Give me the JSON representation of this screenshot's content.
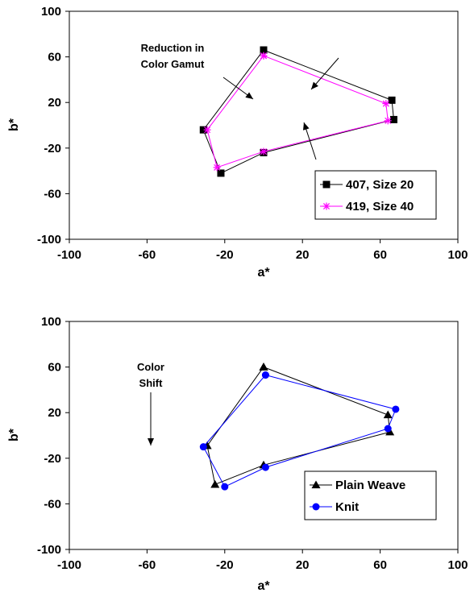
{
  "chart_data": [
    {
      "type": "line",
      "xlabel": "a*",
      "ylabel": "b*",
      "xlim": [
        -100,
        100
      ],
      "ylim": [
        -100,
        100
      ],
      "xticks": [
        -100,
        -60,
        -20,
        20,
        60,
        100
      ],
      "yticks": [
        -100,
        -60,
        -20,
        20,
        60,
        100
      ],
      "grid": false,
      "legend": "bottom-right",
      "annotations": [
        {
          "lines": [
            "Reduction in",
            "Color Gamut"
          ]
        }
      ],
      "series": [
        {
          "name": "407, Size 20",
          "color": "#000000",
          "marker": "square",
          "points": [
            [
              0,
              66
            ],
            [
              66,
              22
            ],
            [
              67,
              5
            ],
            [
              0,
              -24
            ],
            [
              -22,
              -42
            ],
            [
              -31,
              -4
            ],
            [
              0,
              66
            ]
          ]
        },
        {
          "name": "419, Size 40",
          "color": "#ff00ff",
          "marker": "star",
          "points": [
            [
              0,
              61
            ],
            [
              63,
              19
            ],
            [
              64,
              4
            ],
            [
              0,
              -23
            ],
            [
              -24,
              -37
            ],
            [
              -29,
              -4
            ],
            [
              0,
              61
            ]
          ]
        }
      ]
    },
    {
      "type": "line",
      "xlabel": "a*",
      "ylabel": "b*",
      "xlim": [
        -100,
        100
      ],
      "ylim": [
        -100,
        100
      ],
      "xticks": [
        -100,
        -60,
        -20,
        20,
        60,
        100
      ],
      "yticks": [
        -100,
        -60,
        -20,
        20,
        60,
        100
      ],
      "grid": false,
      "legend": "bottom-right",
      "annotations": [
        {
          "lines": [
            "Color",
            "Shift"
          ]
        }
      ],
      "series": [
        {
          "name": "Plain Weave",
          "color": "#000000",
          "marker": "triangle",
          "points": [
            [
              0,
              60
            ],
            [
              64,
              18
            ],
            [
              65,
              3
            ],
            [
              0,
              -26
            ],
            [
              -25,
              -43
            ],
            [
              -29,
              -9
            ],
            [
              0,
              60
            ]
          ]
        },
        {
          "name": "Knit",
          "color": "#0000ff",
          "marker": "circle",
          "points": [
            [
              1,
              53
            ],
            [
              68,
              23
            ],
            [
              64,
              6
            ],
            [
              1,
              -28
            ],
            [
              -20,
              -45
            ],
            [
              -31,
              -10
            ],
            [
              1,
              53
            ]
          ]
        }
      ]
    }
  ]
}
